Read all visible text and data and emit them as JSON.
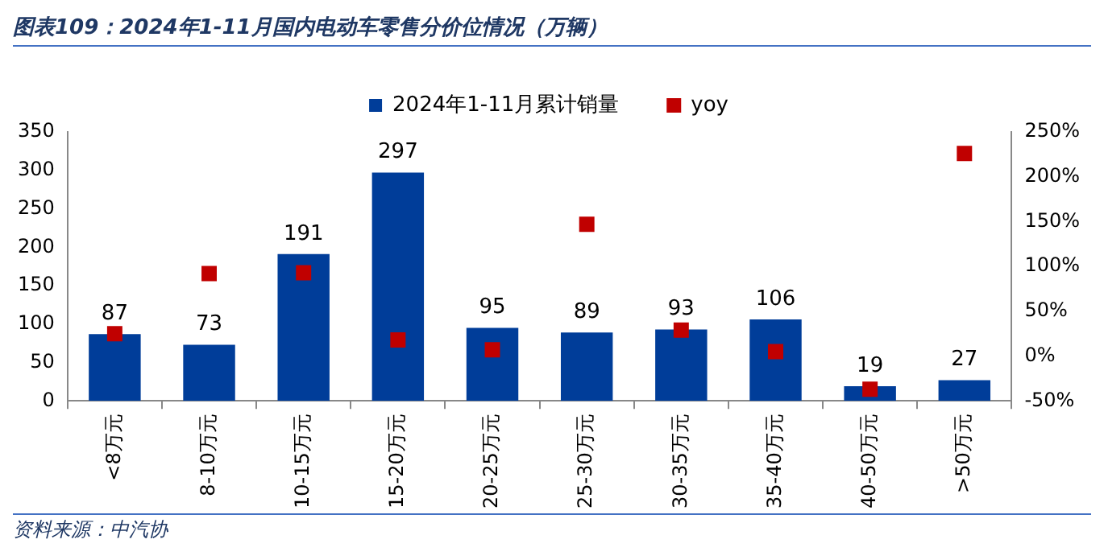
{
  "chart_data": {
    "type": "bar",
    "title": "图表109：2024年1-11月国内电动车零售分价位情况（万辆）",
    "annotations": [
      "资料来源：中汽协"
    ],
    "categories": [
      "<8万元",
      "8-10万元",
      "10-15万元",
      "15-20万元",
      "20-25万元",
      "25-30万元",
      "30-35万元",
      "35-40万元",
      "40-50万元",
      ">50万元"
    ],
    "series": [
      {
        "name": "2024年1-11月累计销量",
        "color": "#003d99",
        "values": [
          87,
          73,
          191,
          297,
          95,
          89,
          93,
          106,
          19,
          27
        ],
        "value_labels": [
          "87",
          "73",
          "191",
          "297",
          "95",
          "89",
          "93",
          "106",
          "19",
          "27"
        ]
      },
      {
        "name": "yoy",
        "type": "scatter",
        "axis": "y2",
        "color": "#c00000",
        "values": [
          25,
          92,
          93,
          18,
          7,
          147,
          29,
          5,
          -37,
          226
        ]
      }
    ],
    "ylim": [
      0,
      350
    ],
    "yticks": [
      0,
      50,
      100,
      150,
      200,
      250,
      300,
      350
    ],
    "y2lim": [
      -50,
      250
    ],
    "y2ticks": [
      {
        "value": -50,
        "label": "-50%"
      },
      {
        "value": 0,
        "label": "0%"
      },
      {
        "value": 50,
        "label": "50%"
      },
      {
        "value": 100,
        "label": "100%"
      },
      {
        "value": 150,
        "label": "150%"
      },
      {
        "value": 200,
        "label": "200%"
      },
      {
        "value": 250,
        "label": "250%"
      }
    ],
    "legend": "top",
    "marker": "square",
    "grid": false
  }
}
